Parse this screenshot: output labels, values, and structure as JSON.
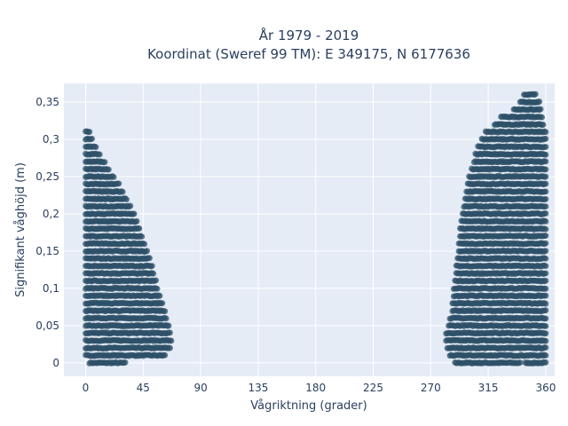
{
  "chart_data": {
    "type": "scatter",
    "title": "År 1979 - 2019",
    "subtitle": "Koordinat (Sweref 99 TM): E 349175, N 6177636",
    "xlabel": "Vågriktning (grader)",
    "ylabel": "Signifikant våghöjd (m)",
    "xlim": [
      -17,
      367
    ],
    "ylim": [
      -0.018,
      0.375
    ],
    "x_ticks": [
      0,
      45,
      90,
      135,
      180,
      225,
      270,
      315,
      360
    ],
    "x_tick_labels": [
      "0",
      "45",
      "90",
      "135",
      "180",
      "225",
      "270",
      "315",
      "360"
    ],
    "y_ticks": [
      0,
      0.05,
      0.1,
      0.15,
      0.2,
      0.25,
      0.3,
      0.35
    ],
    "y_tick_labels": [
      "0",
      "0,05",
      "0,1",
      "0,15",
      "0,2",
      "0,25",
      "0,3",
      "0,35"
    ],
    "grid": true,
    "marker_color": "#2e5068",
    "background_color": "#e5ecf6",
    "height_step": 0.01,
    "bands": [
      {
        "h": 0.0,
        "x_ranges": [
          [
            3,
            31
          ],
          [
            289,
            340
          ],
          [
            344,
            360
          ]
        ]
      },
      {
        "h": 0.01,
        "x_ranges": [
          [
            0,
            62
          ],
          [
            285,
            360
          ]
        ]
      },
      {
        "h": 0.02,
        "x_ranges": [
          [
            0,
            66
          ],
          [
            283,
            360
          ]
        ]
      },
      {
        "h": 0.03,
        "x_ranges": [
          [
            0,
            67
          ],
          [
            282,
            360
          ]
        ]
      },
      {
        "h": 0.04,
        "x_ranges": [
          [
            0,
            66
          ],
          [
            282,
            360
          ]
        ]
      },
      {
        "h": 0.05,
        "x_ranges": [
          [
            0,
            65
          ],
          [
            284,
            360
          ]
        ]
      },
      {
        "h": 0.06,
        "x_ranges": [
          [
            0,
            63
          ],
          [
            285,
            360
          ]
        ]
      },
      {
        "h": 0.07,
        "x_ranges": [
          [
            0,
            62
          ],
          [
            287,
            360
          ]
        ]
      },
      {
        "h": 0.08,
        "x_ranges": [
          [
            0,
            60
          ],
          [
            287,
            360
          ]
        ]
      },
      {
        "h": 0.09,
        "x_ranges": [
          [
            0,
            58
          ],
          [
            288,
            360
          ]
        ]
      },
      {
        "h": 0.1,
        "x_ranges": [
          [
            0,
            56
          ],
          [
            288,
            360
          ]
        ]
      },
      {
        "h": 0.11,
        "x_ranges": [
          [
            0,
            55
          ],
          [
            289,
            360
          ]
        ]
      },
      {
        "h": 0.12,
        "x_ranges": [
          [
            0,
            53
          ],
          [
            290,
            360
          ]
        ]
      },
      {
        "h": 0.13,
        "x_ranges": [
          [
            0,
            52
          ],
          [
            290,
            360
          ]
        ]
      },
      {
        "h": 0.14,
        "x_ranges": [
          [
            0,
            50
          ],
          [
            291,
            360
          ]
        ]
      },
      {
        "h": 0.15,
        "x_ranges": [
          [
            0,
            48
          ],
          [
            292,
            360
          ]
        ]
      },
      {
        "h": 0.16,
        "x_ranges": [
          [
            0,
            46
          ],
          [
            292,
            360
          ]
        ]
      },
      {
        "h": 0.17,
        "x_ranges": [
          [
            0,
            44
          ],
          [
            293,
            360
          ]
        ]
      },
      {
        "h": 0.18,
        "x_ranges": [
          [
            0,
            42
          ],
          [
            293,
            360
          ]
        ]
      },
      {
        "h": 0.19,
        "x_ranges": [
          [
            0,
            40
          ],
          [
            294,
            360
          ]
        ]
      },
      {
        "h": 0.2,
        "x_ranges": [
          [
            0,
            38
          ],
          [
            295,
            360
          ]
        ]
      },
      {
        "h": 0.21,
        "x_ranges": [
          [
            0,
            35
          ],
          [
            296,
            360
          ]
        ]
      },
      {
        "h": 0.22,
        "x_ranges": [
          [
            0,
            32
          ],
          [
            297,
            360
          ]
        ]
      },
      {
        "h": 0.23,
        "x_ranges": [
          [
            0,
            29
          ],
          [
            298,
            360
          ]
        ]
      },
      {
        "h": 0.24,
        "x_ranges": [
          [
            0,
            26
          ],
          [
            299,
            360
          ]
        ]
      },
      {
        "h": 0.25,
        "x_ranges": [
          [
            0,
            22
          ],
          [
            300,
            360
          ]
        ]
      },
      {
        "h": 0.26,
        "x_ranges": [
          [
            0,
            18
          ],
          [
            302,
            360
          ]
        ]
      },
      {
        "h": 0.27,
        "x_ranges": [
          [
            0,
            15
          ],
          [
            304,
            360
          ]
        ]
      },
      {
        "h": 0.28,
        "x_ranges": [
          [
            0,
            11
          ],
          [
            305,
            360
          ]
        ]
      },
      {
        "h": 0.29,
        "x_ranges": [
          [
            0,
            8
          ],
          [
            307,
            360
          ]
        ]
      },
      {
        "h": 0.3,
        "x_ranges": [
          [
            0,
            5
          ],
          [
            310,
            360
          ]
        ]
      },
      {
        "h": 0.31,
        "x_ranges": [
          [
            0,
            3
          ],
          [
            313,
            360
          ]
        ]
      },
      {
        "h": 0.32,
        "x_ranges": [
          [
            320,
            358
          ]
        ]
      },
      {
        "h": 0.33,
        "x_ranges": [
          [
            325,
            357
          ]
        ]
      },
      {
        "h": 0.34,
        "x_ranges": [
          [
            335,
            356
          ]
        ]
      },
      {
        "h": 0.35,
        "x_ranges": [
          [
            340,
            355
          ]
        ]
      },
      {
        "h": 0.36,
        "x_ranges": [
          [
            343,
            352
          ]
        ]
      }
    ]
  }
}
